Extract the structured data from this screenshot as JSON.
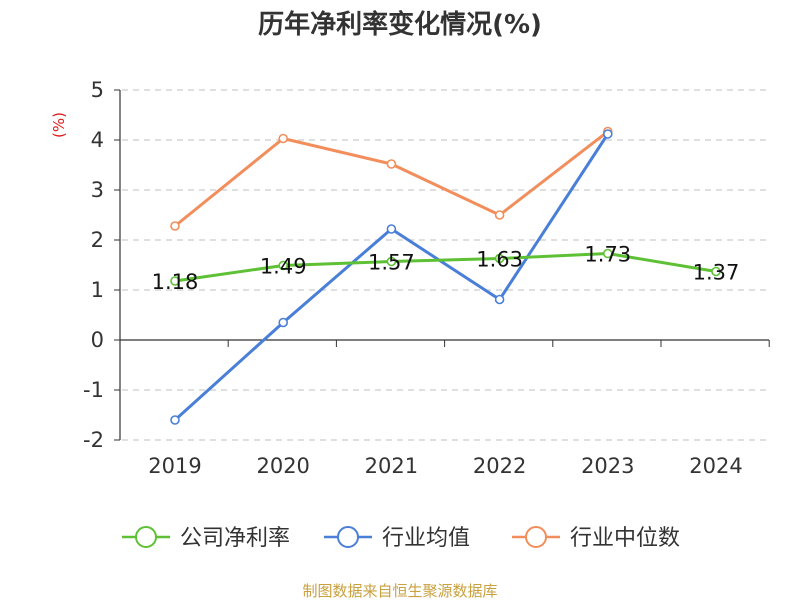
{
  "chart_data": {
    "type": "line",
    "title": "历年净利率变化情况(%)",
    "ylabel": "(%)",
    "categories": [
      "2019",
      "2020",
      "2021",
      "2022",
      "2023",
      "2024"
    ],
    "ylim": [
      -2,
      5
    ],
    "yticks": [
      "-2",
      "-1",
      "0",
      "1",
      "2",
      "3",
      "4",
      "5"
    ],
    "grid": true,
    "legend_position": "bottom",
    "series": [
      {
        "name": "公司净利率",
        "color": "#5ec135",
        "values": [
          1.18,
          1.49,
          1.57,
          1.63,
          1.73,
          1.37
        ],
        "labels": [
          "1.18",
          "1.49",
          "1.57",
          "1.63",
          "1.73",
          "1.37"
        ]
      },
      {
        "name": "行业均值",
        "color": "#4a7fd9",
        "values": [
          -1.6,
          0.35,
          2.22,
          0.81,
          4.12,
          null
        ]
      },
      {
        "name": "行业中位数",
        "color": "#f28e5b",
        "values": [
          2.28,
          4.03,
          3.52,
          2.5,
          4.17,
          null
        ]
      }
    ],
    "source": "制图数据来自恒生聚源数据库"
  }
}
